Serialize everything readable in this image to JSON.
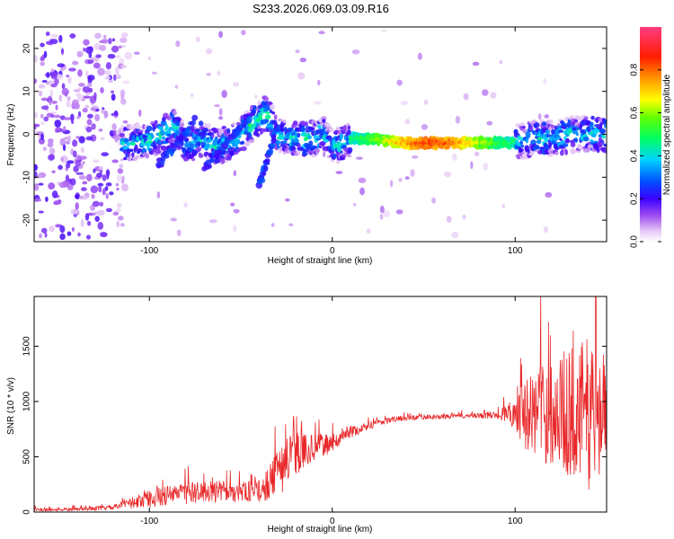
{
  "title": "S233.2026.069.03.09.R16",
  "chart_data": [
    {
      "type": "heatmap",
      "xlabel": "Height of straight line (km)",
      "ylabel": "Frequency (Hz)",
      "xlim": [
        -163,
        150
      ],
      "ylim": [
        -25,
        25
      ],
      "xticks": [
        -100,
        0,
        100
      ],
      "xtick_labels": [
        "-100",
        "0",
        "100"
      ],
      "yticks": [
        -20,
        -10,
        0,
        10,
        20
      ],
      "ytick_labels": [
        "-20",
        "-10",
        "0",
        "10",
        "20"
      ],
      "colorbar": {
        "label": "Normalized spectral amplitude",
        "range": [
          0,
          1
        ],
        "ticks": [
          0.0,
          0.2,
          0.4,
          0.6,
          0.8
        ],
        "tick_labels": [
          "0.0",
          "0.2",
          "0.4",
          "0.6",
          "0.8"
        ],
        "colors": [
          "#ffffff",
          "#c896f0",
          "#8c3cff",
          "#0000ff",
          "#00c8ff",
          "#00ff80",
          "#80ff00",
          "#ffff00",
          "#ff8000",
          "#ff0000",
          "#ff3c82"
        ]
      },
      "ridge": {
        "x": [
          -113,
          -100,
          -85,
          -80,
          -72,
          -62,
          -52,
          -42,
          -36,
          -30,
          -22,
          -10,
          -5,
          0,
          5,
          10,
          20,
          40,
          60,
          80,
          100,
          110,
          120,
          130,
          140,
          150
        ],
        "freq": [
          -2,
          -1.5,
          2,
          -3,
          -1,
          -3,
          -1,
          3,
          5,
          0,
          -1,
          -1,
          0,
          -3,
          -2,
          -1,
          -1,
          -2,
          -2,
          -2,
          -2,
          -1,
          -1,
          0,
          0,
          0
        ]
      }
    },
    {
      "type": "line",
      "xlabel": "Height of straight line (km)",
      "ylabel": "SNR (10 * v/v)",
      "xlim": [
        -163,
        150
      ],
      "ylim": [
        0,
        1950
      ],
      "xticks": [
        -100,
        0,
        100
      ],
      "xtick_labels": [
        "-100",
        "0",
        "100"
      ],
      "yticks": [
        0,
        500,
        1000,
        1500
      ],
      "ytick_labels": [
        "0",
        "500",
        "1000",
        "1500"
      ],
      "series": [
        {
          "name": "SNR",
          "color": "#e8282a",
          "x": [
            -163,
            -140,
            -120,
            -110,
            -100,
            -90,
            -80,
            -70,
            -60,
            -50,
            -40,
            -35,
            -30,
            -25,
            -20,
            -15,
            -10,
            -5,
            0,
            5,
            10,
            20,
            30,
            40,
            50,
            60,
            70,
            80,
            90,
            95,
            100,
            105,
            110,
            120,
            130,
            140,
            145,
            150
          ],
          "values": [
            20,
            25,
            40,
            80,
            120,
            150,
            170,
            180,
            185,
            180,
            190,
            250,
            350,
            450,
            520,
            560,
            580,
            600,
            620,
            680,
            720,
            780,
            830,
            850,
            860,
            860,
            870,
            870,
            880,
            890,
            900,
            880,
            900,
            900,
            900,
            900,
            890,
            900
          ],
          "noise": [
            15,
            15,
            20,
            50,
            80,
            90,
            100,
            100,
            100,
            90,
            100,
            150,
            200,
            250,
            200,
            150,
            120,
            100,
            80,
            60,
            50,
            40,
            30,
            25,
            20,
            20,
            20,
            25,
            40,
            80,
            150,
            300,
            400,
            500,
            600,
            700,
            700,
            600
          ]
        }
      ]
    }
  ]
}
